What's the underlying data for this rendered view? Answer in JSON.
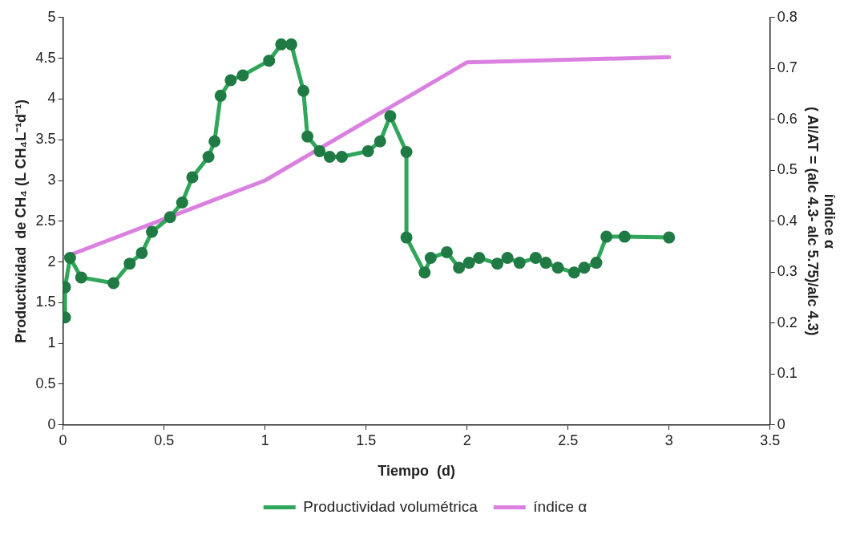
{
  "chart_data": {
    "type": "line",
    "xlabel": "Tiempo  (d)",
    "ylabel": "Productividad  de CH₄ (L CH₄L⁻¹d⁻¹)",
    "y2label": "índice α\n( AI/AT = (alc 4.3- alc 5.75)/alc 4.3)",
    "xlim": [
      0,
      3.5
    ],
    "xticks": [
      0,
      0.5,
      1,
      1.5,
      2,
      2.5,
      3,
      3.5
    ],
    "ylim": [
      0,
      5
    ],
    "yticks": [
      0,
      0.5,
      1,
      1.5,
      2,
      2.5,
      3,
      3.5,
      4,
      4.5,
      5
    ],
    "y2lim": [
      0,
      0.8
    ],
    "y2ticks": [
      0,
      0.1,
      0.2,
      0.3,
      0.4,
      0.5,
      0.6,
      0.7,
      0.8
    ],
    "grid": false,
    "legend": "bottom",
    "line_style": "solid",
    "series": [
      {
        "name": "Productividad volumétrica",
        "color": "#2fa65a",
        "marker": "circle",
        "x": [
          0.01,
          0.01,
          0.035,
          0.09,
          0.25,
          0.33,
          0.39,
          0.44,
          0.53,
          0.59,
          0.64,
          0.72,
          0.75,
          0.78,
          0.83,
          0.89,
          1.02,
          1.08,
          1.13,
          1.19,
          1.21,
          1.27,
          1.32,
          1.38,
          1.51,
          1.57,
          1.62,
          1.7,
          1.7,
          1.79,
          1.82,
          1.9,
          1.96,
          2.01,
          2.06,
          2.15,
          2.2,
          2.26,
          2.34,
          2.39,
          2.45,
          2.53,
          2.58,
          2.64,
          2.69,
          2.78,
          3.0
        ],
        "values": [
          1.32,
          1.69,
          2.05,
          1.81,
          1.74,
          1.98,
          2.11,
          2.37,
          2.55,
          2.73,
          3.04,
          3.29,
          3.48,
          4.04,
          4.23,
          4.29,
          4.47,
          4.67,
          4.67,
          4.1,
          3.54,
          3.36,
          3.29,
          3.29,
          3.36,
          3.48,
          3.79,
          3.35,
          2.3,
          1.87,
          2.05,
          2.12,
          1.93,
          1.99,
          2.05,
          1.98,
          2.05,
          1.99,
          2.05,
          1.99,
          1.93,
          1.87,
          1.93,
          1.99,
          2.31,
          2.31,
          2.3
        ]
      },
      {
        "name": "índice α",
        "color": "#da80e0",
        "marker": "none",
        "axis": "y2",
        "x": [
          0.01,
          1.0,
          2.0,
          3.0
        ],
        "values": [
          0.33,
          0.48,
          0.712,
          0.722
        ]
      }
    ]
  }
}
